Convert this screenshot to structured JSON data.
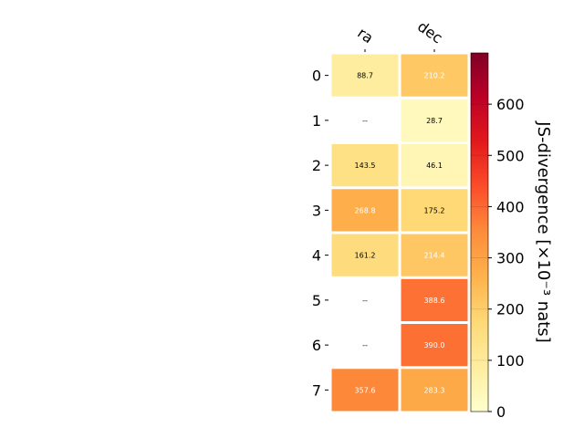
{
  "chart_data": {
    "type": "heatmap",
    "title": "",
    "columns": [
      "ra",
      "dec"
    ],
    "rows": [
      "0",
      "1",
      "2",
      "3",
      "4",
      "5",
      "6",
      "7"
    ],
    "values": [
      [
        88.7,
        210.2
      ],
      [
        null,
        28.7
      ],
      [
        143.5,
        46.1
      ],
      [
        268.8,
        175.2
      ],
      [
        161.2,
        214.4
      ],
      [
        null,
        388.6
      ],
      [
        null,
        390.0
      ],
      [
        357.6,
        283.3
      ]
    ],
    "cell_labels": [
      [
        "88.7",
        "210.2"
      ],
      [
        "--",
        "28.7"
      ],
      [
        "143.5",
        "46.1"
      ],
      [
        "268.8",
        "175.2"
      ],
      [
        "161.2",
        "214.4"
      ],
      [
        "--",
        "388.6"
      ],
      [
        "--",
        "390.0"
      ],
      [
        "357.6",
        "283.3"
      ]
    ],
    "colormap": "YlOrRd",
    "colorbar": {
      "label": "JS-divergence [×10⁻³ nats]",
      "range": [
        0,
        700
      ],
      "ticks": [
        "0",
        "100",
        "200",
        "300",
        "400",
        "500",
        "600"
      ],
      "tick_values": [
        0,
        100,
        200,
        300,
        400,
        500,
        600
      ]
    }
  }
}
